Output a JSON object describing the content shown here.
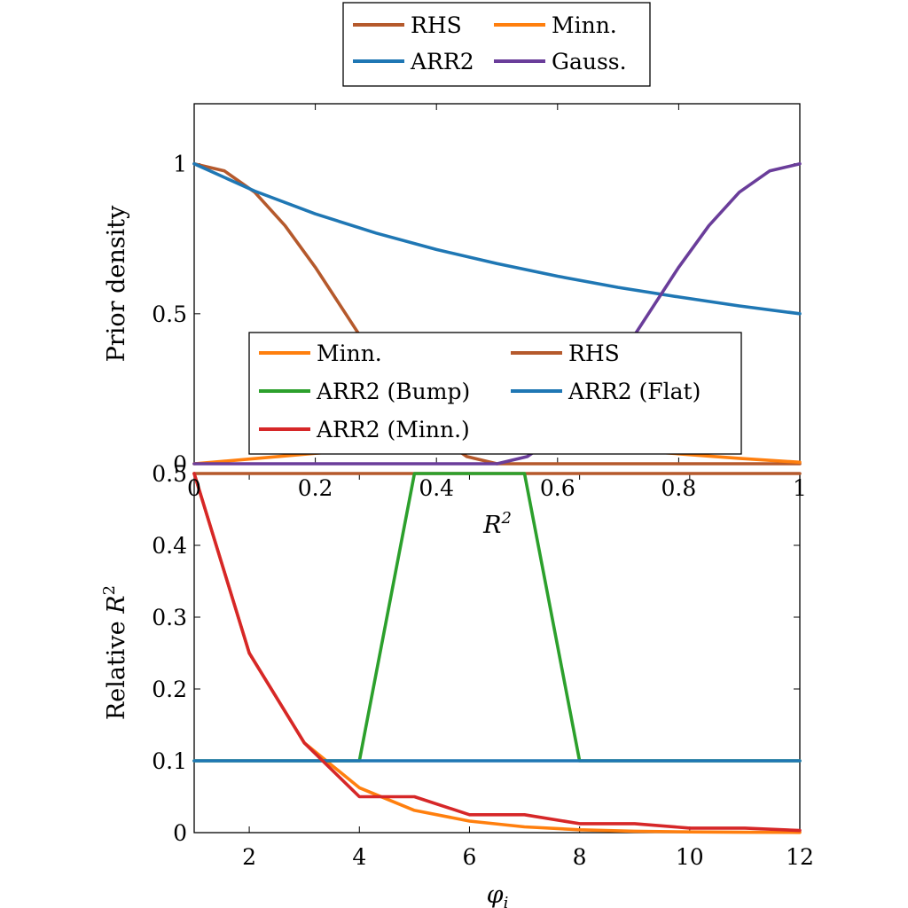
{
  "chart_data": [
    {
      "type": "line",
      "xlabel": "R^2",
      "ylabel": "Prior density",
      "xlim": [
        0,
        1
      ],
      "ylim": [
        0,
        1.2
      ],
      "xticks": [
        "0",
        "0.2",
        "0.4",
        "0.6",
        "0.8",
        "1"
      ],
      "yticks": [
        "0",
        "0.5",
        "1"
      ],
      "grid": false,
      "legend_position": "above",
      "series": [
        {
          "name": "RHS",
          "color": "#b5592c",
          "x": [
            0,
            0.05,
            0.1,
            0.15,
            0.2,
            0.25,
            0.3,
            0.35,
            0.4,
            0.45,
            0.5,
            0.55,
            0.6,
            0.65,
            0.7,
            0.75,
            0.8,
            0.85,
            0.9,
            0.95,
            1
          ],
          "y": [
            1,
            0.976,
            0.905,
            0.794,
            0.655,
            0.5,
            0.345,
            0.206,
            0.095,
            0.024,
            0,
            0,
            0,
            0,
            0,
            0,
            0,
            0,
            0,
            0,
            0
          ]
        },
        {
          "name": "Minn.",
          "color": "#ff7f0e",
          "x": [
            0,
            0.1,
            0.2,
            0.3,
            0.4,
            0.5,
            0.6,
            0.7,
            0.8,
            0.9,
            1
          ],
          "y": [
            0,
            0.017,
            0.035,
            0.05,
            0.06,
            0.062,
            0.058,
            0.048,
            0.033,
            0.018,
            0.005
          ]
        },
        {
          "name": "ARR2",
          "color": "#1f77b4",
          "x": [
            0,
            0.1,
            0.2,
            0.3,
            0.4,
            0.5,
            0.6,
            0.7,
            0.8,
            0.9,
            1
          ],
          "y": [
            1,
            0.909,
            0.833,
            0.769,
            0.714,
            0.667,
            0.625,
            0.588,
            0.556,
            0.526,
            0.5
          ]
        },
        {
          "name": "Gauss.",
          "color": "#6a3d9a",
          "x": [
            0,
            0.5,
            0.55,
            0.6,
            0.65,
            0.7,
            0.75,
            0.8,
            0.85,
            0.9,
            0.95,
            1
          ],
          "y": [
            0,
            0,
            0.024,
            0.095,
            0.206,
            0.345,
            0.5,
            0.655,
            0.794,
            0.905,
            0.976,
            1
          ]
        }
      ]
    },
    {
      "type": "line",
      "xlabel": "φ_i",
      "ylabel": "Relative R^2",
      "xlim": [
        1,
        12
      ],
      "ylim": [
        0,
        0.5
      ],
      "xticks": [
        "2",
        "4",
        "6",
        "8",
        "10",
        "12"
      ],
      "yticks": [
        "0",
        "0.1",
        "0.2",
        "0.3",
        "0.4",
        "0.5"
      ],
      "grid": false,
      "legend_position": "inside, overlapping upper plot",
      "series": [
        {
          "name": "Minn.",
          "color": "#ff7f0e",
          "x": [
            1,
            2,
            3,
            4,
            5,
            6,
            7,
            8,
            9,
            10,
            11,
            12
          ],
          "y": [
            0.5,
            0.25,
            0.125,
            0.0625,
            0.031,
            0.016,
            0.008,
            0.004,
            0.002,
            0.001,
            0.0005,
            0.0002
          ]
        },
        {
          "name": "RHS",
          "color": "#b5592c",
          "x": [
            1,
            12
          ],
          "y": [
            0.5,
            0.5
          ]
        },
        {
          "name": "ARR2 (Bump)",
          "color": "#2ca02c",
          "x": [
            1,
            2,
            3,
            4,
            5,
            6,
            7,
            8,
            9,
            10,
            11,
            12
          ],
          "y": [
            0.1,
            0.1,
            0.1,
            0.1,
            0.5,
            0.5,
            0.5,
            0.1,
            0.1,
            0.1,
            0.1,
            0.1
          ]
        },
        {
          "name": "ARR2 (Flat)",
          "color": "#1f77b4",
          "x": [
            1,
            12
          ],
          "y": [
            0.1,
            0.1
          ]
        },
        {
          "name": "ARR2 (Minn.)",
          "color": "#d62728",
          "x": [
            1,
            2,
            3,
            4,
            5,
            6,
            7,
            8,
            9,
            10,
            11,
            12
          ],
          "y": [
            0.5,
            0.25,
            0.125,
            0.05,
            0.05,
            0.025,
            0.025,
            0.0125,
            0.0125,
            0.00625,
            0.00625,
            0.003
          ]
        }
      ]
    }
  ],
  "legends": {
    "top": [
      {
        "label": "RHS",
        "color": "#b5592c"
      },
      {
        "label": "Minn.",
        "color": "#ff7f0e"
      },
      {
        "label": "ARR2",
        "color": "#1f77b4"
      },
      {
        "label": "Gauss.",
        "color": "#6a3d9a"
      }
    ],
    "bottom": [
      {
        "label": "Minn.",
        "color": "#ff7f0e"
      },
      {
        "label": "RHS",
        "color": "#b5592c"
      },
      {
        "label": "ARR2 (Bump)",
        "color": "#2ca02c"
      },
      {
        "label": "ARR2 (Flat)",
        "color": "#1f77b4"
      },
      {
        "label": "ARR2 (Minn.)",
        "color": "#d62728"
      }
    ]
  }
}
